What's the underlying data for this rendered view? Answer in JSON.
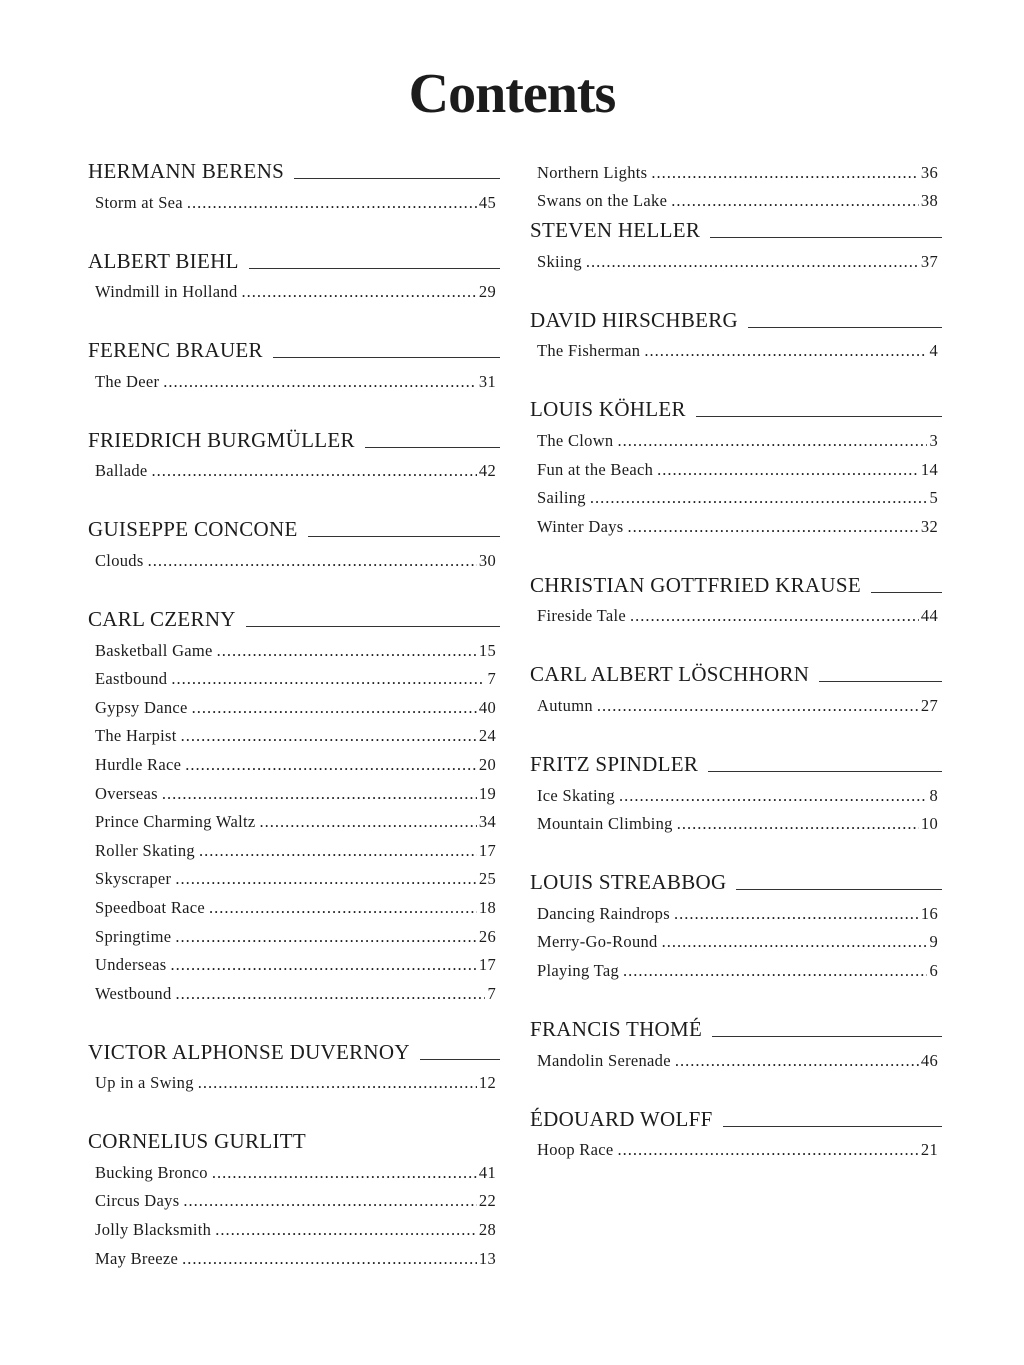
{
  "title": "Contents",
  "left_column": [
    {
      "composer": "HERMANN BERENS",
      "rule": true,
      "pieces": [
        {
          "title": "Storm at Sea",
          "page": "45"
        }
      ]
    },
    {
      "composer": "ALBERT BIEHL",
      "rule": true,
      "pieces": [
        {
          "title": "Windmill in Holland",
          "page": "29"
        }
      ]
    },
    {
      "composer": "FERENC BRAUER",
      "rule": true,
      "pieces": [
        {
          "title": "The Deer",
          "page": "31"
        }
      ]
    },
    {
      "composer": "FRIEDRICH BURGMÜLLER",
      "rule": true,
      "pieces": [
        {
          "title": "Ballade",
          "page": "42"
        }
      ]
    },
    {
      "composer": "GUISEPPE CONCONE",
      "rule": true,
      "pieces": [
        {
          "title": "Clouds",
          "page": "30"
        }
      ]
    },
    {
      "composer": "CARL CZERNY",
      "rule": true,
      "pieces": [
        {
          "title": "Basketball Game",
          "page": "15"
        },
        {
          "title": "Eastbound",
          "page": "7"
        },
        {
          "title": "Gypsy Dance",
          "page": "40"
        },
        {
          "title": "The Harpist",
          "page": "24"
        },
        {
          "title": "Hurdle Race",
          "page": "20"
        },
        {
          "title": "Overseas",
          "page": "19"
        },
        {
          "title": "Prince Charming Waltz",
          "page": "34"
        },
        {
          "title": "Roller Skating",
          "page": "17"
        },
        {
          "title": "Skyscraper",
          "page": "25"
        },
        {
          "title": "Speedboat Race",
          "page": "18"
        },
        {
          "title": "Springtime",
          "page": "26"
        },
        {
          "title": "Underseas",
          "page": "17"
        },
        {
          "title": "Westbound",
          "page": "7"
        }
      ]
    },
    {
      "composer": "VICTOR ALPHONSE DUVERNOY",
      "rule": true,
      "pieces": [
        {
          "title": "Up in a Swing",
          "page": "12"
        }
      ]
    },
    {
      "composer": "CORNELIUS GURLITT",
      "rule": false,
      "pieces": [
        {
          "title": "Bucking Bronco",
          "page": "41"
        },
        {
          "title": "Circus Days",
          "page": "22"
        },
        {
          "title": "Jolly Blacksmith",
          "page": "28"
        },
        {
          "title": "May Breeze",
          "page": "13"
        }
      ]
    }
  ],
  "right_column": [
    {
      "composer": "",
      "rule": false,
      "pieces": [
        {
          "title": "Northern Lights",
          "page": "36"
        },
        {
          "title": "Swans on the Lake",
          "page": "38"
        }
      ]
    },
    {
      "composer": "STEVEN HELLER",
      "rule": true,
      "pieces": [
        {
          "title": "Skiing",
          "page": "37"
        }
      ]
    },
    {
      "composer": "DAVID HIRSCHBERG",
      "rule": true,
      "pieces": [
        {
          "title": "The Fisherman",
          "page": "4"
        }
      ]
    },
    {
      "composer": "LOUIS KÖHLER",
      "rule": true,
      "pieces": [
        {
          "title": "The Clown",
          "page": "3"
        },
        {
          "title": "Fun at the Beach",
          "page": "14"
        },
        {
          "title": "Sailing",
          "page": "5"
        },
        {
          "title": "Winter Days",
          "page": "32"
        }
      ]
    },
    {
      "composer": "CHRISTIAN GOTTFRIED KRAUSE",
      "rule": true,
      "pieces": [
        {
          "title": "Fireside Tale",
          "page": "44"
        }
      ]
    },
    {
      "composer": "CARL ALBERT LÖSCHHORN",
      "rule": true,
      "pieces": [
        {
          "title": "Autumn",
          "page": "27"
        }
      ]
    },
    {
      "composer": "FRITZ SPINDLER",
      "rule": true,
      "pieces": [
        {
          "title": "Ice Skating",
          "page": "8"
        },
        {
          "title": "Mountain Climbing",
          "page": "10"
        }
      ]
    },
    {
      "composer": "LOUIS STREABBOG",
      "rule": true,
      "pieces": [
        {
          "title": "Dancing Raindrops",
          "page": "16"
        },
        {
          "title": "Merry-Go-Round",
          "page": "9"
        },
        {
          "title": "Playing Tag",
          "page": "6"
        }
      ]
    },
    {
      "composer": "FRANCIS THOMÉ",
      "rule": true,
      "pieces": [
        {
          "title": "Mandolin Serenade",
          "page": "46"
        }
      ]
    },
    {
      "composer": "ÉDOUARD WOLFF",
      "rule": true,
      "pieces": [
        {
          "title": "Hoop Race",
          "page": "21"
        }
      ]
    }
  ]
}
